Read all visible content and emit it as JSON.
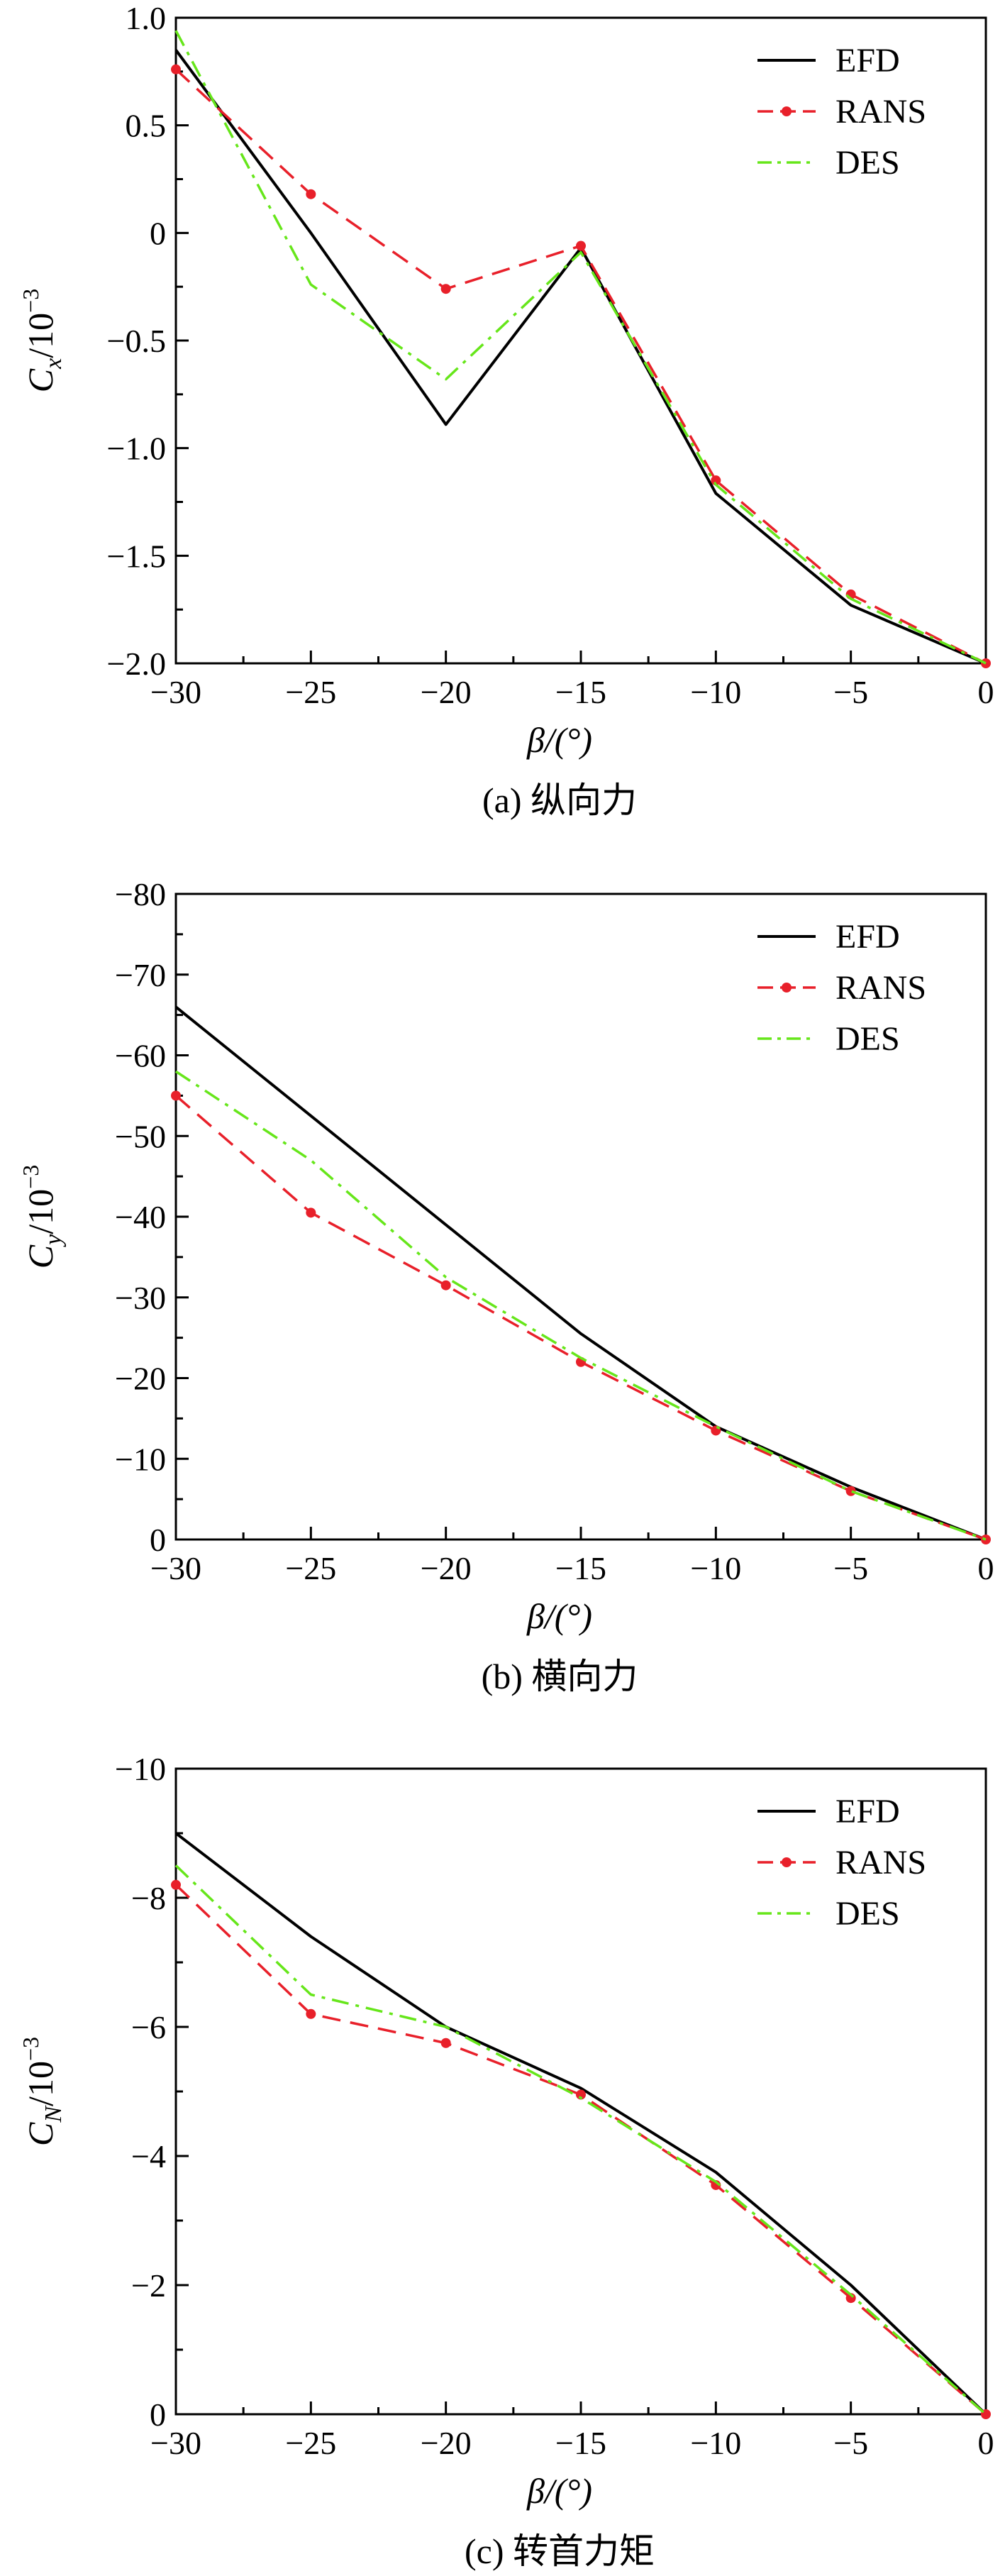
{
  "figure": {
    "xlabel": "β/(°)"
  },
  "chart_data": [
    {
      "type": "line",
      "caption": "(a) 纵向力",
      "ylabel_main": "C",
      "ylabel_sub": "x",
      "ylabel_unit": "/10",
      "ylabel_exp": "−3",
      "xlim": [
        -30,
        0
      ],
      "ylim": [
        -2.0,
        1.0
      ],
      "y_inverted": false,
      "x": [
        -30,
        -25,
        -20,
        -15,
        -10,
        -5,
        0
      ],
      "x_ticks": [
        -30,
        -25,
        -20,
        -15,
        -10,
        -5,
        0
      ],
      "x_tick_labels": [
        "−30",
        "−25",
        "−20",
        "−15",
        "−10",
        "−5",
        "0"
      ],
      "y_ticks": [
        1.0,
        0.5,
        0,
        -0.5,
        -1.0,
        -1.5,
        -2.0
      ],
      "y_tick_labels": [
        "1.0",
        "0.5",
        "0",
        "−0.5",
        "−1.0",
        "−1.5",
        "−2.0"
      ],
      "series": [
        {
          "name": "EFD",
          "values": [
            0.85,
            0.0,
            -0.89,
            -0.07,
            -1.21,
            -1.73,
            -2.0
          ]
        },
        {
          "name": "RANS",
          "values": [
            0.76,
            0.18,
            -0.26,
            -0.06,
            -1.15,
            -1.68,
            -2.0
          ]
        },
        {
          "name": "DES",
          "values": [
            0.94,
            -0.24,
            -0.68,
            -0.09,
            -1.17,
            -1.7,
            -2.0
          ]
        }
      ],
      "legend": [
        "EFD",
        "RANS",
        "DES"
      ],
      "legend_position": "top-right"
    },
    {
      "type": "line",
      "caption": "(b) 横向力",
      "ylabel_main": "C",
      "ylabel_sub": "y",
      "ylabel_unit": "/10",
      "ylabel_exp": "−3",
      "xlim": [
        -30,
        0
      ],
      "ylim": [
        0,
        -80
      ],
      "y_inverted": true,
      "x": [
        -30,
        -25,
        -20,
        -15,
        -10,
        -5,
        0
      ],
      "x_ticks": [
        -30,
        -25,
        -20,
        -15,
        -10,
        -5,
        0
      ],
      "x_tick_labels": [
        "−30",
        "−25",
        "−20",
        "−15",
        "−10",
        "−5",
        "0"
      ],
      "y_ticks": [
        -80,
        -70,
        -60,
        -50,
        -40,
        -30,
        -20,
        -10,
        0
      ],
      "y_tick_labels": [
        "−80",
        "−70",
        "−60",
        "−50",
        "−40",
        "−30",
        "−20",
        "−10",
        "0"
      ],
      "series": [
        {
          "name": "EFD",
          "values": [
            -66,
            -52.5,
            -39,
            -25.5,
            -14,
            -6.5,
            0
          ]
        },
        {
          "name": "RANS",
          "values": [
            -55,
            -40.5,
            -31.5,
            -22,
            -13.5,
            -6,
            0
          ]
        },
        {
          "name": "DES",
          "values": [
            -58,
            -47,
            -32.5,
            -22.5,
            -14,
            -6,
            0
          ]
        }
      ],
      "legend": [
        "EFD",
        "RANS",
        "DES"
      ],
      "legend_position": "top-right"
    },
    {
      "type": "line",
      "caption": "(c) 转首力矩",
      "ylabel_main": "C",
      "ylabel_sub": "N",
      "ylabel_unit": "/10",
      "ylabel_exp": "−3",
      "xlim": [
        -30,
        0
      ],
      "ylim": [
        0,
        -10
      ],
      "y_inverted": true,
      "x": [
        -30,
        -25,
        -20,
        -15,
        -10,
        -5,
        0
      ],
      "x_ticks": [
        -30,
        -25,
        -20,
        -15,
        -10,
        -5,
        0
      ],
      "x_tick_labels": [
        "−30",
        "−25",
        "−20",
        "−15",
        "−10",
        "−5",
        "0"
      ],
      "y_ticks": [
        -10,
        -8,
        -6,
        -4,
        -2,
        0
      ],
      "y_tick_labels": [
        "−10",
        "−8",
        "−6",
        "−4",
        "−2",
        "0"
      ],
      "series": [
        {
          "name": "EFD",
          "values": [
            -9.0,
            -7.4,
            -6.0,
            -5.05,
            -3.75,
            -2.0,
            0
          ]
        },
        {
          "name": "RANS",
          "values": [
            -8.2,
            -6.2,
            -5.75,
            -4.95,
            -3.55,
            -1.8,
            0
          ]
        },
        {
          "name": "DES",
          "values": [
            -8.5,
            -6.5,
            -6.0,
            -4.9,
            -3.6,
            -1.85,
            0
          ]
        }
      ],
      "legend": [
        "EFD",
        "RANS",
        "DES"
      ],
      "legend_position": "top-right"
    }
  ],
  "colors": {
    "EFD": "#000000",
    "RANS": "#e8202a",
    "DES": "#66e61a"
  }
}
